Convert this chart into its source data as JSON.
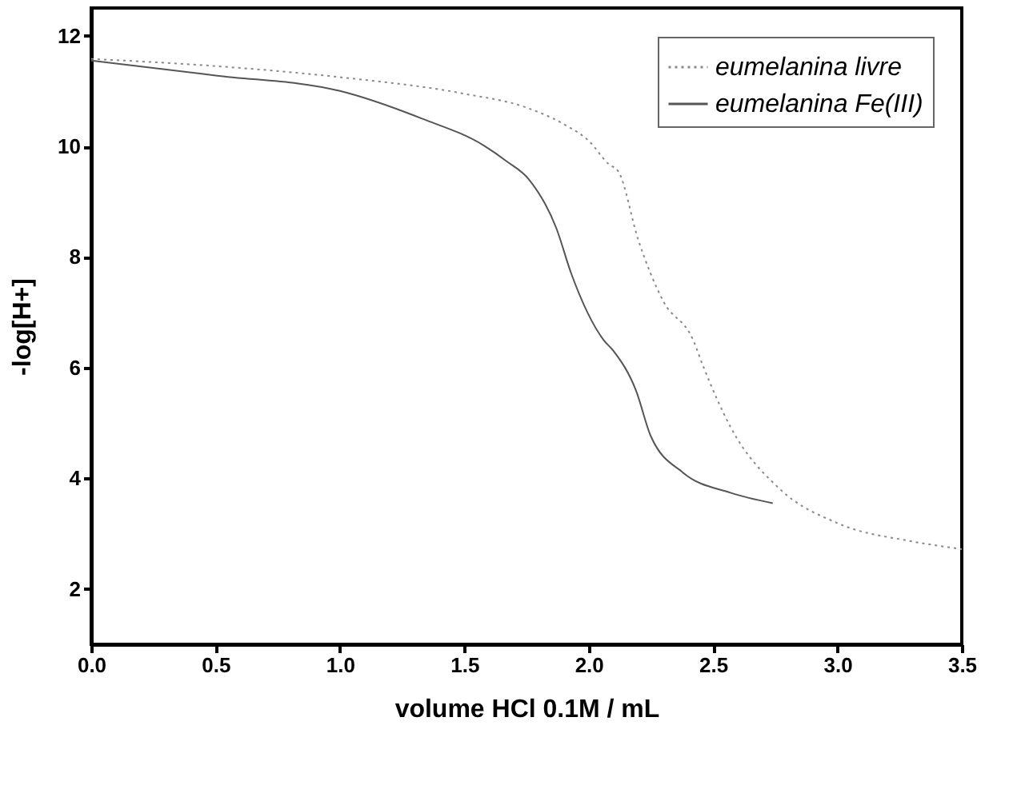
{
  "chart_data": {
    "type": "line",
    "xlabel": "volume HCl 0.1M / mL",
    "ylabel": "-log[H+]",
    "xlim": [
      0,
      3.5
    ],
    "ylim": [
      1,
      12.5
    ],
    "xticks": [
      {
        "value": 0,
        "label": "0.0"
      },
      0.5,
      {
        "value": 1,
        "label": "1.0"
      },
      1.5,
      {
        "value": 2,
        "label": "2.0"
      },
      2.5,
      {
        "value": 3,
        "label": "3.0"
      },
      3.5
    ],
    "yticks": [
      2,
      4,
      6,
      8,
      10,
      12
    ],
    "grid": false,
    "legend": "top right",
    "marker": "none",
    "series": [
      {
        "name": "eumelanina livre",
        "color": "#888888",
        "line_style": "dotted",
        "x": [
          0,
          0.5,
          1.0,
          1.5,
          1.75,
          1.9,
          2.0,
          2.08,
          2.12,
          2.2,
          2.3,
          2.42,
          2.46,
          2.57,
          2.77,
          3.0,
          3.3,
          3.5
        ],
        "values": [
          11.58,
          11.45,
          11.25,
          10.95,
          10.7,
          10.4,
          10.1,
          9.68,
          9.54,
          8.3,
          7.2,
          6.5,
          6.03,
          4.93,
          3.8,
          3.19,
          2.86,
          2.72
        ]
      },
      {
        "name": "eumelanina Fe(III)",
        "color": "#555555",
        "line_style": "solid",
        "x": [
          0,
          0.5,
          1.0,
          1.33,
          1.58,
          1.67,
          1.76,
          1.87,
          1.93,
          2.06,
          2.1,
          2.19,
          2.25,
          2.38,
          2.57,
          2.74
        ],
        "values": [
          11.55,
          11.28,
          11.0,
          10.5,
          10.01,
          9.73,
          9.4,
          8.52,
          7.7,
          6.5,
          6.3,
          5.59,
          4.76,
          4.1,
          3.74,
          3.55
        ]
      }
    ]
  }
}
